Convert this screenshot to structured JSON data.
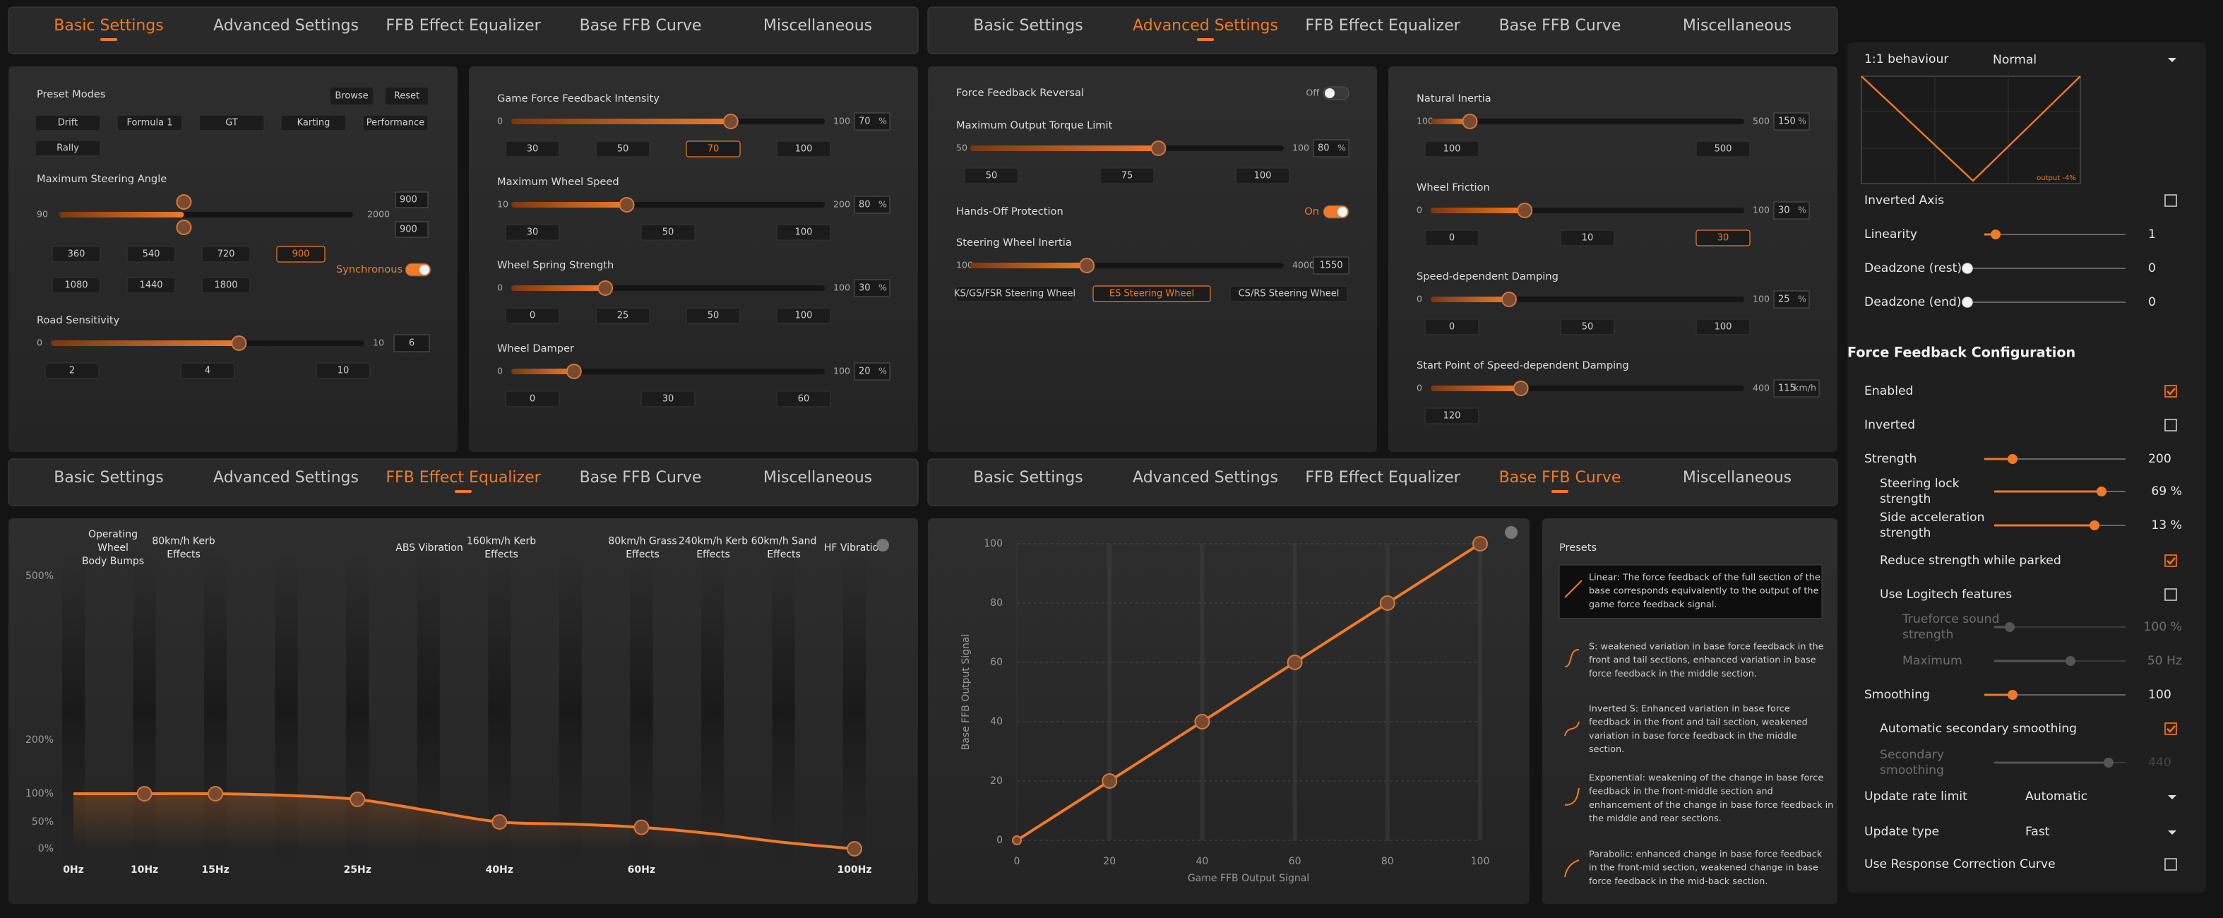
{
  "tabs": [
    "Basic Settings",
    "Advanced Settings",
    "FFB Effect Equalizer",
    "Base FFB Curve",
    "Miscellaneous"
  ],
  "tab_bars": [
    {
      "active": 0
    },
    {
      "active": 1
    },
    {
      "active": 2
    },
    {
      "active": 3
    }
  ],
  "basic_settings": {
    "preset_label": "Preset Modes",
    "actions": [
      "Browse",
      "Reset"
    ],
    "modes": [
      "Drift",
      "Formula 1",
      "GT",
      "Karting",
      "Performance",
      "Rally"
    ],
    "selected_mode": null,
    "steering": {
      "label": "Maximum Steering Angle",
      "min": 90,
      "max": 2000,
      "value": 900,
      "value2": 900,
      "presets": [
        360,
        540,
        720,
        900,
        1080,
        1440,
        1800
      ],
      "sync_label": "Synchronous",
      "sync_on": true
    },
    "road": {
      "label": "Road Sensitivity",
      "min": 0,
      "max": 10,
      "value": 6,
      "presets": [
        2,
        4,
        10
      ]
    }
  },
  "ffb_settings": [
    {
      "label": "Game Force Feedback Intensity",
      "min": 0,
      "max": 100,
      "value": 70,
      "unit": "%",
      "presets": [
        30,
        50,
        70,
        100
      ]
    },
    {
      "label": "Maximum Wheel Speed",
      "min": 10,
      "max": 200,
      "value": 80,
      "unit": "%",
      "presets": [
        30,
        50,
        100
      ]
    },
    {
      "label": "Wheel Spring Strength",
      "min": 0,
      "max": 100,
      "value": 30,
      "unit": "%",
      "presets": [
        0,
        25,
        50,
        100
      ]
    },
    {
      "label": "Wheel Damper",
      "min": 0,
      "max": 100,
      "value": 20,
      "unit": "%",
      "presets": [
        0,
        30,
        60
      ]
    }
  ],
  "advanced_left": {
    "reversal": {
      "label": "Force Feedback Reversal",
      "state": "Off",
      "on": false
    },
    "torque": {
      "label": "Maximum Output Torque Limit",
      "min": 50,
      "max": 100,
      "value": 80,
      "unit": "%",
      "presets": [
        50,
        75,
        100
      ]
    },
    "hands_off": {
      "label": "Hands-Off Protection",
      "state": "On",
      "on": true
    },
    "inertia": {
      "label": "Steering Wheel Inertia",
      "min": 100,
      "max": 4000,
      "value": 1550,
      "wheels": [
        "KS/GS/FSR Steering Wheel",
        "ES Steering Wheel",
        "CS/RS Steering Wheel"
      ],
      "selected_wheel": 1
    }
  },
  "advanced_right": [
    {
      "label": "Natural Inertia",
      "min": 100,
      "max": 500,
      "value": 150,
      "unit": "%",
      "presets": [
        100,
        500
      ]
    },
    {
      "label": "Wheel Friction",
      "min": 0,
      "max": 100,
      "value": 30,
      "unit": "%",
      "presets": [
        0,
        10,
        30
      ]
    },
    {
      "label": "Speed-dependent Damping",
      "min": 0,
      "max": 100,
      "value": 25,
      "unit": "%",
      "presets": [
        0,
        50,
        100
      ]
    },
    {
      "label": "Start Point of Speed-dependent Damping",
      "min": 0,
      "max": 400,
      "value": 115,
      "unit": "km/h",
      "presets": [
        120
      ]
    }
  ],
  "equalizer": {
    "type": "line",
    "categories": [
      "0Hz",
      "10Hz",
      "15Hz",
      null,
      "25Hz",
      null,
      "40Hz",
      null,
      "60Hz",
      null,
      null,
      "100Hz"
    ],
    "values": [
      100,
      100,
      100,
      97,
      90,
      70,
      50,
      46,
      40,
      28,
      12,
      0
    ],
    "yticks": [
      {
        "value": 0,
        "label": "0%"
      },
      {
        "value": 50,
        "label": "50%"
      },
      {
        "value": 100,
        "label": "100%"
      },
      {
        "value": 200,
        "label": "200%"
      },
      {
        "value": 500,
        "label": "500%"
      }
    ],
    "color": "#f07a2a",
    "effects": [
      [
        "Operating",
        "Wheel",
        "Body Bumps"
      ],
      [
        "80km/h Kerb",
        "Effects"
      ],
      [
        "ABS Vibration"
      ],
      [
        "160km/h Kerb",
        "Effects"
      ],
      [
        "80km/h Grass",
        "Effects"
      ],
      [
        "240km/h Kerb",
        "Effects"
      ],
      [
        "60km/h Sand",
        "Effects"
      ],
      [
        "HF Vibration"
      ]
    ]
  },
  "ffb_curve": {
    "type": "line",
    "x": [
      0,
      20,
      40,
      60,
      80,
      100
    ],
    "values": [
      0,
      20,
      40,
      60,
      80,
      100
    ],
    "xlim": [
      0,
      100
    ],
    "ylim": [
      0,
      100
    ],
    "xticks": [
      0,
      20,
      40,
      60,
      80,
      100
    ],
    "yticks": [
      0,
      20,
      40,
      60,
      80,
      100
    ],
    "xlabel": "Game FFB Output Signal",
    "ylabel": "Base FFB Output Signal",
    "color": "#f07a2a",
    "grid": true
  },
  "presets": {
    "title": "Presets",
    "selected": 0,
    "items": [
      [
        "Linear: The force feedback of the full section of the",
        "base corresponds equivalently to the output of the",
        "game force feedback signal."
      ],
      [
        "S: weakened variation in base force feedback in the",
        "front and tail sections, enhanced variation in base",
        "force feedback in the middle section."
      ],
      [
        "Inverted S: Enhanced variation in base force",
        "feedback in the front and tail section, weakened",
        "variation in base force feedback in the middle",
        "section."
      ],
      [
        "Exponential: weakening of the change in base force",
        "feedback in the front-middle section and",
        "enhancement of the change in base force feedback in",
        "the middle and rear sections."
      ],
      [
        "Parabolic: enhanced change in base force feedback",
        "in the front-mid section, weakened change in base",
        "force feedback in the mid-back section."
      ]
    ]
  },
  "misc": {
    "behaviour_label": "1:1 behaviour",
    "behaviour": "Normal",
    "graph_label": "output -4%",
    "rows": [
      {
        "kind": "check",
        "label": [
          "Inverted Axis"
        ],
        "checked": false
      },
      {
        "kind": "slider",
        "label": [
          "Linearity"
        ],
        "value": 1
      },
      {
        "kind": "slider",
        "label": [
          "Deadzone (rest)"
        ],
        "value": 0
      },
      {
        "kind": "slider",
        "label": [
          "Deadzone (end)"
        ],
        "value": 0
      },
      {
        "kind": "heading",
        "label": [
          "Force Feedback Configuration"
        ]
      },
      {
        "kind": "check",
        "label": [
          "Enabled"
        ],
        "checked": true
      },
      {
        "kind": "check",
        "label": [
          "Inverted"
        ],
        "checked": false
      },
      {
        "kind": "slider",
        "label": [
          "Strength"
        ],
        "value": 200
      },
      {
        "kind": "slider",
        "label": [
          "Steering lock",
          "strength"
        ],
        "value": 69,
        "value_label": "69 %"
      },
      {
        "kind": "slider",
        "label": [
          "Side acceleration",
          "strength"
        ],
        "value": 13,
        "value_label": "13 %"
      },
      {
        "kind": "check",
        "label": [
          "Reduce strength while parked"
        ],
        "checked": true
      },
      {
        "kind": "check",
        "label": [
          "Use Logitech features"
        ],
        "checked": false
      },
      {
        "kind": "slider",
        "label": [
          "Trueforce sound",
          "strength"
        ],
        "value": 100,
        "value_label": "100 %",
        "dimmed": true
      },
      {
        "kind": "slider",
        "label": [
          "Maximum"
        ],
        "value": 50,
        "value_label": "50 Hz",
        "dimmed": true
      },
      {
        "kind": "slider",
        "label": [
          "Smoothing"
        ],
        "value": 100
      },
      {
        "kind": "check",
        "label": [
          "Automatic secondary smoothing"
        ],
        "checked": true
      },
      {
        "kind": "slider",
        "label": [
          "Secondary",
          "smoothing"
        ],
        "value": 440,
        "dimmed": true
      },
      {
        "kind": "select",
        "label": [
          "Update rate limit"
        ],
        "value": "Automatic"
      },
      {
        "kind": "select",
        "label": [
          "Update type"
        ],
        "value": "Fast"
      },
      {
        "kind": "check",
        "label": [
          "Use Response Correction Curve"
        ],
        "checked": false
      }
    ]
  }
}
